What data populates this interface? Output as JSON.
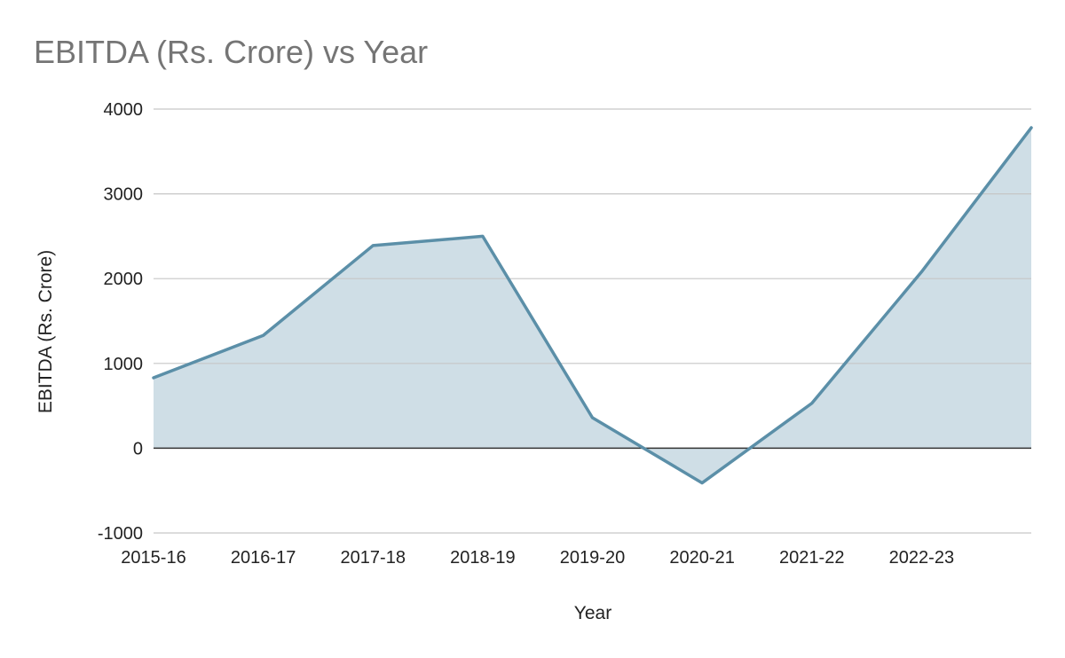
{
  "chart_data": {
    "type": "area",
    "title": "EBITDA (Rs. Crore) vs Year",
    "xlabel": "Year",
    "ylabel": "EBITDA (Rs. Crore)",
    "categories": [
      "2015-16",
      "2016-17",
      "2017-18",
      "2018-19",
      "2019-20",
      "2020-21",
      "2021-22",
      "2022-23",
      ""
    ],
    "series": [
      {
        "values": [
          830,
          1330,
          2390,
          2500,
          360,
          -410,
          530,
          2080,
          3780
        ]
      }
    ],
    "ylim": [
      -1000,
      4000
    ],
    "yticks": [
      4000,
      3000,
      2000,
      1000,
      0,
      -1000
    ],
    "grid": true,
    "legend": "none",
    "colors": {
      "line": "#5b8fa8",
      "fill": "#cfdee6",
      "grid": "#c6c6c6",
      "zero_line": "#333333",
      "title": "#757575"
    }
  }
}
